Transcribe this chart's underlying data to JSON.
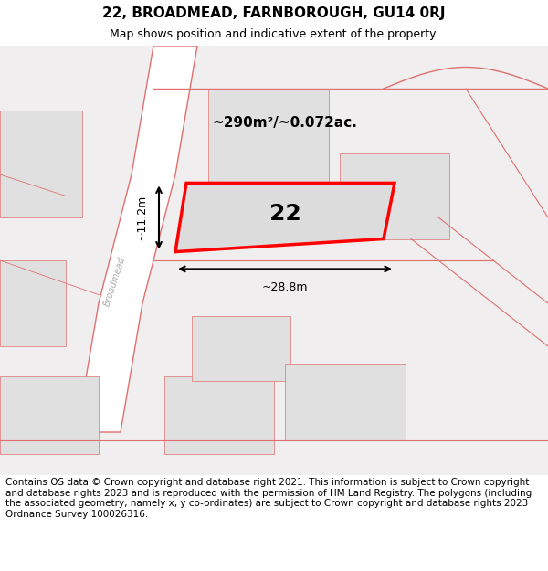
{
  "title": "22, BROADMEAD, FARNBOROUGH, GU14 0RJ",
  "subtitle": "Map shows position and indicative extent of the property.",
  "footer": "Contains OS data © Crown copyright and database right 2021. This information is subject to Crown copyright and database rights 2023 and is reproduced with the permission of HM Land Registry. The polygons (including the associated geometry, namely x, y co-ordinates) are subject to Crown copyright and database rights 2023 Ordnance Survey 100026316.",
  "map_bg": "#f5f5f5",
  "plot_fill": "#e8e8e8",
  "road_color": "#f0c0c0",
  "road_stroke": "#e07070",
  "highlight_color": "#ff0000",
  "dimension_color": "#000000",
  "label_number": "22",
  "area_label": "~290m²/~0.072ac.",
  "dim_width": "~28.8m",
  "dim_height": "~11.2m",
  "street_label": "Broadmead",
  "title_fontsize": 11,
  "subtitle_fontsize": 9,
  "footer_fontsize": 7.5
}
